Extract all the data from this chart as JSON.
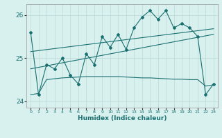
{
  "title": "",
  "xlabel": "Humidex (Indice chaleur)",
  "bg_color": "#d8f0ee",
  "grid_color": "#c0dedd",
  "line_color": "#1a7070",
  "xlim": [
    -0.5,
    23.5
  ],
  "ylim": [
    23.85,
    26.25
  ],
  "yticks": [
    24,
    25,
    26
  ],
  "xticks": [
    0,
    1,
    2,
    3,
    4,
    5,
    6,
    7,
    8,
    9,
    10,
    11,
    12,
    13,
    14,
    15,
    16,
    17,
    18,
    19,
    20,
    21,
    22,
    23
  ],
  "main_x": [
    0,
    1,
    2,
    3,
    4,
    5,
    6,
    7,
    8,
    9,
    10,
    11,
    12,
    13,
    14,
    15,
    16,
    17,
    18,
    19,
    20,
    21,
    22,
    23
  ],
  "main_y": [
    25.6,
    24.15,
    24.85,
    24.75,
    25.0,
    24.6,
    24.4,
    25.1,
    24.85,
    25.5,
    25.25,
    25.55,
    25.2,
    25.7,
    25.95,
    26.1,
    25.9,
    26.1,
    25.7,
    25.8,
    25.7,
    25.5,
    24.15,
    24.4
  ],
  "trend1_x": [
    0,
    23
  ],
  "trend1_y": [
    24.75,
    25.55
  ],
  "trend2_x": [
    0,
    23
  ],
  "trend2_y": [
    25.15,
    25.68
  ],
  "lower_x": [
    0,
    1,
    2,
    3,
    4,
    5,
    6,
    7,
    8,
    9,
    10,
    11,
    12,
    13,
    14,
    15,
    16,
    17,
    18,
    19,
    20,
    21,
    22,
    23
  ],
  "lower_y": [
    24.15,
    24.18,
    24.5,
    24.52,
    24.54,
    24.55,
    24.56,
    24.57,
    24.57,
    24.57,
    24.57,
    24.57,
    24.56,
    24.55,
    24.54,
    24.54,
    24.53,
    24.52,
    24.51,
    24.51,
    24.5,
    24.5,
    24.35,
    24.38
  ]
}
